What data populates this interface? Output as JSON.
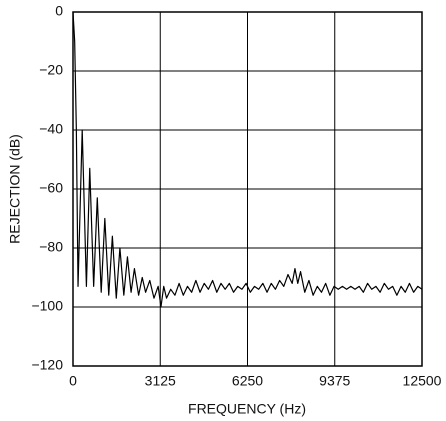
{
  "chart_data": {
    "type": "line",
    "xlabel": "FREQUENCY (Hz)",
    "ylabel": "REJECTION (dB)",
    "color": "#000000",
    "grid": true,
    "xlim": [
      0,
      12500
    ],
    "xticks": [
      0,
      3125,
      6250,
      9375,
      12500
    ],
    "ylim": [
      -120,
      0
    ],
    "yticks": [
      0,
      {
        "value": -20,
        "label": "−20"
      },
      {
        "value": -40,
        "label": "−40"
      },
      {
        "value": -60,
        "label": "−60"
      },
      {
        "value": -80,
        "label": "−80"
      },
      {
        "value": -100,
        "label": "−100"
      },
      {
        "value": -120,
        "label": "−120"
      }
    ],
    "x": [
      0,
      60,
      120,
      180,
      330,
      480,
      600,
      740,
      870,
      1010,
      1140,
      1280,
      1410,
      1550,
      1680,
      1820,
      1950,
      2080,
      2200,
      2350,
      2480,
      2600,
      2750,
      2900,
      3050,
      3150,
      3250,
      3350,
      3500,
      3650,
      3800,
      3950,
      4100,
      4250,
      4400,
      4550,
      4700,
      4850,
      5000,
      5150,
      5300,
      5450,
      5600,
      5750,
      5900,
      6050,
      6200,
      6350,
      6500,
      6650,
      6800,
      6950,
      7100,
      7250,
      7400,
      7550,
      7700,
      7850,
      7950,
      8050,
      8150,
      8300,
      8450,
      8600,
      8750,
      8900,
      9050,
      9200,
      9350,
      9500,
      9650,
      9800,
      9950,
      10100,
      10250,
      10400,
      10550,
      10700,
      10850,
      11000,
      11150,
      11300,
      11450,
      11600,
      11750,
      11900,
      12050,
      12200,
      12350,
      12500
    ],
    "values": [
      0,
      -10,
      -40,
      -93,
      -40,
      -93,
      -53,
      -93,
      -63,
      -95,
      -70,
      -96,
      -76,
      -97,
      -80,
      -96,
      -83,
      -95,
      -87,
      -96,
      -90,
      -95,
      -91,
      -97,
      -93,
      -100,
      -93,
      -97,
      -94,
      -96,
      -92,
      -96,
      -93,
      -95,
      -91,
      -95,
      -92,
      -94,
      -91,
      -95,
      -92,
      -94,
      -92,
      -95,
      -93,
      -94,
      -92,
      -95,
      -93,
      -94,
      -92,
      -95,
      -92,
      -94,
      -91,
      -93,
      -89,
      -92,
      -87,
      -92,
      -88,
      -95,
      -91,
      -96,
      -93,
      -95,
      -92,
      -96,
      -93,
      -94,
      -93,
      -94,
      -93,
      -94,
      -93,
      -95,
      -92,
      -94,
      -93,
      -95,
      -92,
      -94,
      -93,
      -96,
      -93,
      -95,
      -92,
      -95,
      -93,
      -94
    ]
  }
}
